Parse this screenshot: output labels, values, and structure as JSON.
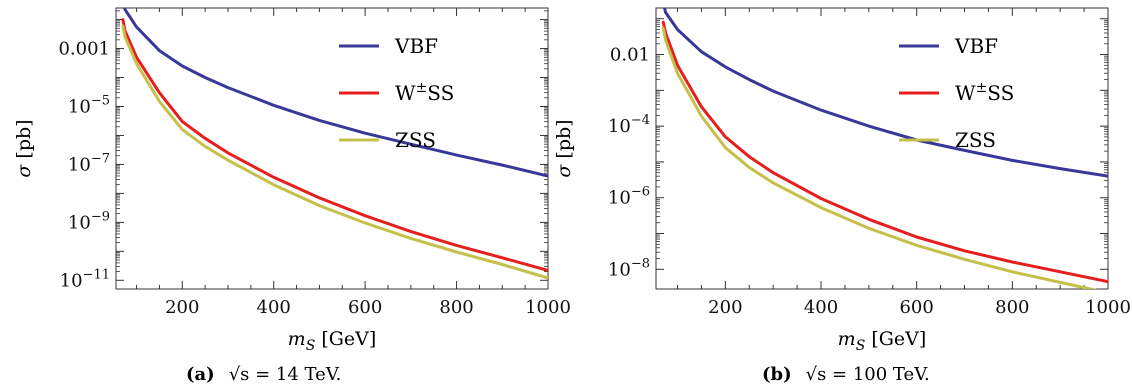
{
  "colors": {
    "vbf": "#38389a",
    "wss": "#e61e1e",
    "zss": "#c4c04a",
    "frame": "#333333"
  },
  "chart_data": [
    {
      "type": "line",
      "caption_tag": "(a)",
      "caption_text": "√s = 14 TeV.",
      "xlabel": "m_S [GeV]",
      "ylabel": "σ [pb]",
      "xlim": [
        55,
        1000
      ],
      "ylim_log10": [
        -11.3,
        -1.6
      ],
      "y_scale": "log",
      "xticks": [
        200,
        400,
        600,
        800,
        1000
      ],
      "yticks": [
        {
          "e": -3,
          "label": "0.001"
        },
        {
          "e": -5,
          "label": "10^-5"
        },
        {
          "e": -7,
          "label": "10^-7"
        },
        {
          "e": -9,
          "label": "10^-9"
        },
        {
          "e": -11,
          "label": "10^-11"
        }
      ],
      "legend_position": "top-right",
      "series": [
        {
          "name": "VBF",
          "color_key": "vbf",
          "x": [
            70,
            75,
            100,
            150,
            200,
            250,
            300,
            400,
            500,
            600,
            700,
            800,
            900,
            1000
          ],
          "y": [
            0.04,
            0.022,
            0.0055,
            0.00085,
            0.00025,
            0.0001,
            4.5e-05,
            1.1e-05,
            3.3e-06,
            1.2e-06,
            5e-07,
            2.1e-07,
            9.5e-08,
            4e-08
          ]
        },
        {
          "name": "W±SS",
          "color_key": "wss",
          "x": [
            70,
            75,
            100,
            150,
            200,
            250,
            300,
            400,
            500,
            600,
            700,
            800,
            900,
            1000
          ],
          "y": [
            0.01,
            0.004,
            0.0005,
            3e-05,
            3e-06,
            8e-07,
            2.5e-07,
            3.6e-08,
            7e-09,
            1.7e-09,
            4.8e-10,
            1.6e-10,
            6e-11,
            2.2e-11
          ]
        },
        {
          "name": "ZSS",
          "color_key": "zss",
          "x": [
            70,
            75,
            100,
            150,
            200,
            250,
            300,
            400,
            500,
            600,
            700,
            800,
            900,
            1000
          ],
          "y": [
            0.006,
            0.0025,
            0.0003,
            1.5e-05,
            1.6e-06,
            4.2e-07,
            1.4e-07,
            2e-08,
            3.8e-09,
            9.5e-10,
            2.8e-10,
            9.5e-11,
            3.5e-11,
            1.2e-11
          ]
        }
      ]
    },
    {
      "type": "line",
      "caption_tag": "(b)",
      "caption_text": "√s = 100 TeV.",
      "xlabel": "m_S [GeV]",
      "ylabel": "σ [pb]",
      "xlim": [
        55,
        1000
      ],
      "ylim_log10": [
        -8.55,
        -0.7
      ],
      "y_scale": "log",
      "xticks": [
        200,
        400,
        600,
        800,
        1000
      ],
      "yticks": [
        {
          "e": -2,
          "label": "0.01"
        },
        {
          "e": -4,
          "label": "10^-4"
        },
        {
          "e": -6,
          "label": "10^-6"
        },
        {
          "e": -8,
          "label": "10^-8"
        }
      ],
      "legend_position": "top-right",
      "series": [
        {
          "name": "VBF",
          "color_key": "vbf",
          "x": [
            70,
            75,
            100,
            150,
            200,
            250,
            300,
            400,
            500,
            600,
            700,
            800,
            900,
            1000
          ],
          "y": [
            0.28,
            0.15,
            0.05,
            0.012,
            0.0045,
            0.002,
            0.00095,
            0.00028,
            0.0001,
            4.1e-05,
            2.1e-05,
            1.1e-05,
            6.5e-06,
            4e-06
          ]
        },
        {
          "name": "W±SS",
          "color_key": "wss",
          "x": [
            70,
            75,
            100,
            150,
            200,
            250,
            300,
            400,
            500,
            600,
            700,
            800,
            900,
            1000
          ],
          "y": [
            0.08,
            0.04,
            0.005,
            0.00035,
            5e-05,
            1.4e-05,
            5e-06,
            9.5e-07,
            2.5e-07,
            8e-08,
            3.3e-08,
            1.6e-08,
            8.5e-09,
            4.5e-09
          ]
        },
        {
          "name": "ZSS",
          "color_key": "zss",
          "x": [
            70,
            75,
            100,
            150,
            200,
            250,
            300,
            400,
            500,
            600,
            700,
            800,
            900,
            1000
          ],
          "y": [
            0.055,
            0.025,
            0.003,
            0.00019,
            2.5e-05,
            7e-06,
            2.6e-06,
            5.3e-07,
            1.4e-07,
            4.7e-08,
            1.9e-08,
            8.5e-09,
            4.3e-09,
            2.2e-09
          ]
        }
      ]
    }
  ]
}
